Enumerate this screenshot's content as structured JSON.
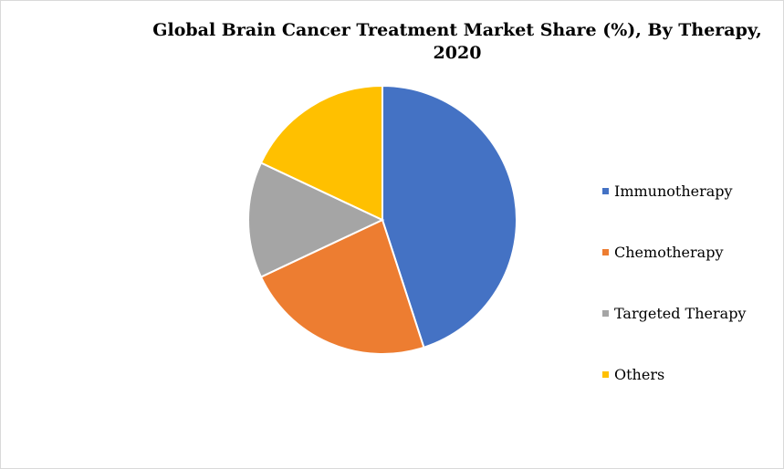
{
  "chart_data": {
    "type": "pie",
    "title": "Global Brain Cancer Treatment Market Share (%), By Therapy, 2020",
    "categories": [
      "Immunotherapy",
      "Chemotherapy",
      "Targeted Therapy",
      "Others"
    ],
    "values": [
      45,
      23,
      14,
      18
    ],
    "colors": [
      "#4472C4",
      "#ED7D31",
      "#A5A5A5",
      "#FFC000"
    ],
    "legend_position": "right"
  }
}
